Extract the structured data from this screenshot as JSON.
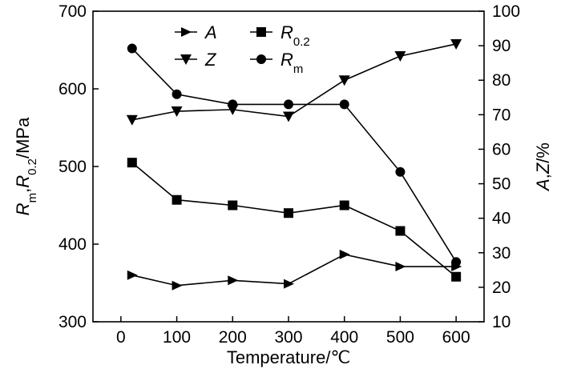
{
  "chart_data": {
    "type": "line",
    "x": [
      20,
      100,
      200,
      300,
      400,
      500,
      600
    ],
    "xlabel": "Temperature/℃",
    "xlim": [
      -50,
      650
    ],
    "xticks": [
      "0",
      "100",
      "200",
      "300",
      "400",
      "500",
      "600"
    ],
    "ylabel_left": {
      "main": "R",
      "parts": [
        {
          "t": "R",
          "italic": true
        },
        {
          "t": "m",
          "sub": true
        },
        {
          "t": ",",
          "italic": false
        },
        {
          "t": "R",
          "italic": true
        },
        {
          "t": "0.2",
          "sub": true
        },
        {
          "t": "/MPa",
          "italic": false
        }
      ]
    },
    "ylabel_right": {
      "parts": [
        {
          "t": "A",
          "italic": true
        },
        {
          "t": ",",
          "italic": false
        },
        {
          "t": "Z",
          "italic": true
        },
        {
          "t": "/%",
          "italic": false
        }
      ]
    },
    "ylim_left": [
      300,
      700
    ],
    "yticks_left": [
      "300",
      "400",
      "500",
      "600",
      "700"
    ],
    "ylim_right": [
      10,
      100
    ],
    "yticks_right": [
      "10",
      "20",
      "30",
      "40",
      "50",
      "60",
      "70",
      "80",
      "90",
      "100"
    ],
    "series": [
      {
        "name": "A",
        "axis": "right",
        "marker": "triangle-right",
        "values": [
          23.5,
          20.5,
          22,
          21,
          29.5,
          26,
          26
        ]
      },
      {
        "name": "R0.2",
        "axis": "left",
        "marker": "square",
        "values": [
          505,
          457,
          450,
          440,
          450,
          417,
          358
        ]
      },
      {
        "name": "Z",
        "axis": "right",
        "marker": "triangle-down",
        "values": [
          68.5,
          71,
          71.5,
          69.5,
          80,
          87,
          90.5
        ]
      },
      {
        "name": "Rm",
        "axis": "left",
        "marker": "circle",
        "values": [
          652,
          593,
          580,
          580,
          580,
          493,
          377
        ]
      }
    ],
    "legend": {
      "placement": "top-center",
      "entries": [
        {
          "marker": "triangle-right",
          "parts": [
            {
              "t": "A"
            }
          ]
        },
        {
          "marker": "square",
          "parts": [
            {
              "t": "R"
            },
            {
              "t": "0.2",
              "sub": true
            }
          ]
        },
        {
          "marker": "triangle-down",
          "parts": [
            {
              "t": "Z"
            }
          ]
        },
        {
          "marker": "circle",
          "parts": [
            {
              "t": "R"
            },
            {
              "t": "m",
              "sub": true
            }
          ]
        }
      ]
    },
    "grid": false
  }
}
